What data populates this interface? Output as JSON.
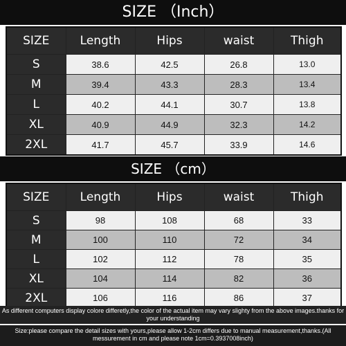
{
  "inch_table": {
    "title": "SIZE （Inch）",
    "headers": [
      "SIZE",
      "Length",
      "Hips",
      "waist",
      "Thigh"
    ],
    "rows": [
      [
        "S",
        "38.6",
        "42.5",
        "26.8",
        "13.0"
      ],
      [
        "M",
        "39.4",
        "43.3",
        "28.3",
        "13.4"
      ],
      [
        "L",
        "40.2",
        "44.1",
        "30.7",
        "13.8"
      ],
      [
        "XL",
        "40.9",
        "44.9",
        "32.3",
        "14.2"
      ],
      [
        "2XL",
        "41.7",
        "45.7",
        "33.9",
        "14.6"
      ]
    ]
  },
  "cm_table": {
    "title": "SIZE （cm）",
    "headers": [
      "SIZE",
      "Length",
      "Hips",
      "waist",
      "Thigh"
    ],
    "rows": [
      [
        "S",
        "98",
        "108",
        "68",
        "33"
      ],
      [
        "M",
        "100",
        "110",
        "72",
        "34"
      ],
      [
        "L",
        "102",
        "112",
        "78",
        "35"
      ],
      [
        "XL",
        "104",
        "114",
        "82",
        "36"
      ],
      [
        "2XL",
        "106",
        "116",
        "86",
        "37"
      ]
    ]
  },
  "notes": {
    "color_note": "As different computers display colore differetly,the color of the actual item may vary slighty from the above images.thanks for your understanding",
    "size_note": "Size:please compare the detail sizes with yours,please allow 1-2cm differs due to manual measurement,thanks.(All messurement in cm and please note 1cm=0.3937008inch)"
  }
}
